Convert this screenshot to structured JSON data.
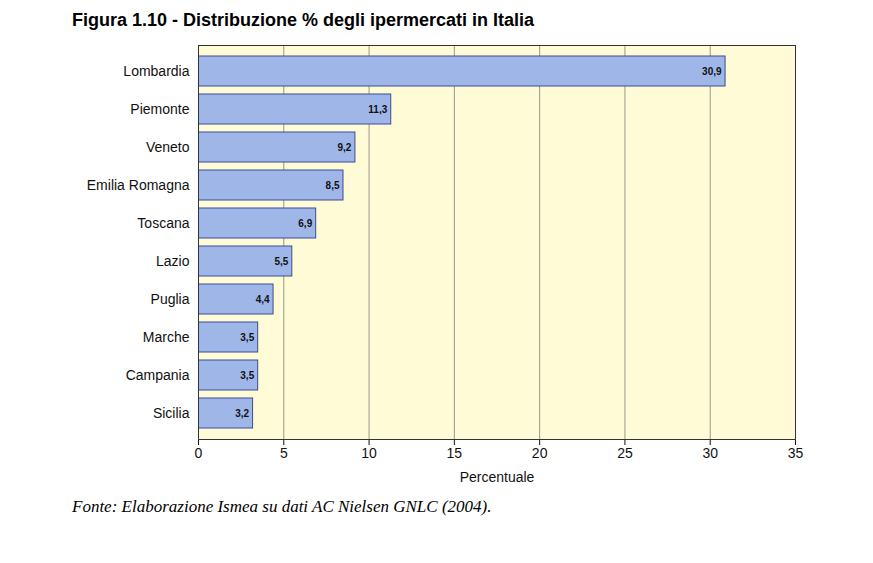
{
  "chart_data": {
    "type": "bar",
    "orientation": "horizontal",
    "title": "Figura 1.10 - Distribuzione % degli ipermercati in Italia",
    "caption": "Fonte: Elaborazione Ismea su dati AC Nielsen GNLC (2004).",
    "x_label": "Percentuale",
    "categories": [
      "Lombardia",
      "Piemonte",
      "Veneto",
      "Emilia Romagna",
      "Toscana",
      "Lazio",
      "Puglia",
      "Marche",
      "Campania",
      "Sicilia"
    ],
    "values": [
      30.9,
      11.3,
      9.2,
      8.5,
      6.9,
      5.5,
      4.4,
      3.5,
      3.5,
      3.2
    ],
    "value_labels": [
      "30,9",
      "11,3",
      "9,2",
      "8,5",
      "6,9",
      "5,5",
      "4,4",
      "3,5",
      "3,5",
      "3,2"
    ],
    "data_labels": true,
    "color": "#9fb6e8",
    "xlim": [
      0,
      35
    ],
    "xticks": [
      0,
      5,
      10,
      15,
      20,
      25,
      30,
      35
    ],
    "grid": true
  }
}
